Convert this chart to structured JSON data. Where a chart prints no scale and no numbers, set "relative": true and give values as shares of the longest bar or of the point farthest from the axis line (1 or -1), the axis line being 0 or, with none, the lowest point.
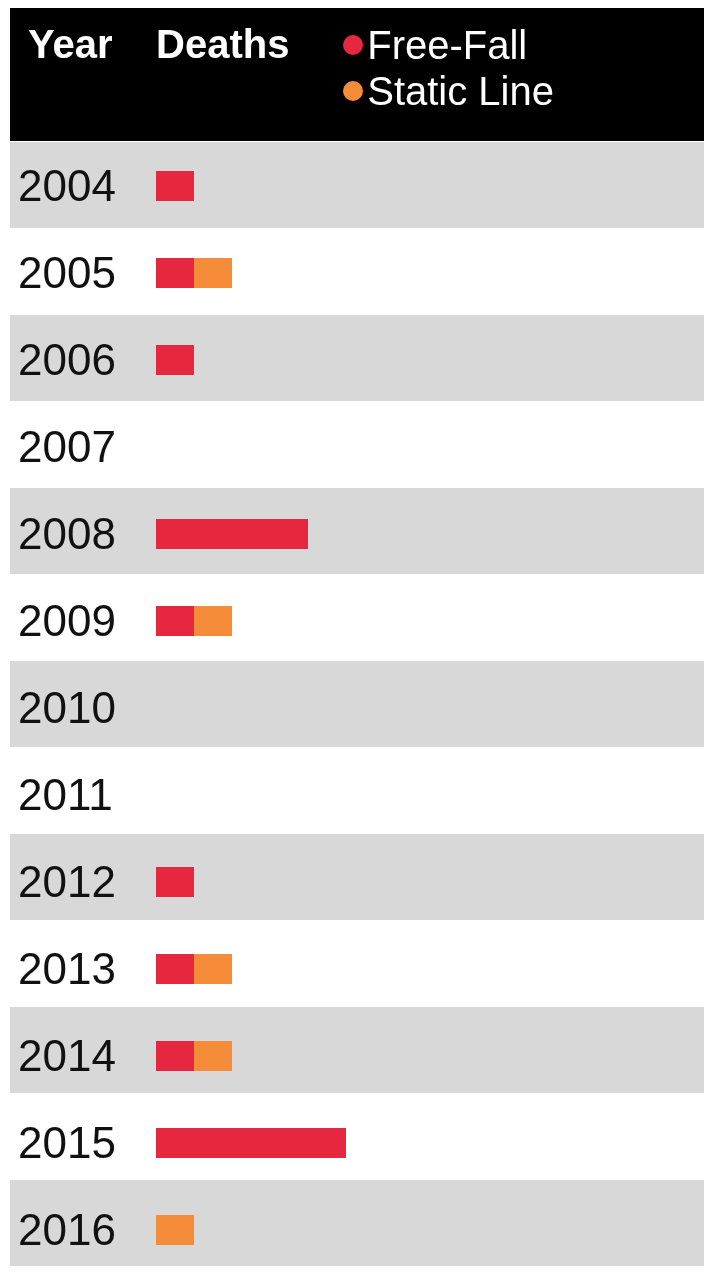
{
  "chart_data": {
    "type": "bar",
    "orientation": "horizontal",
    "stacked": true,
    "relative": true,
    "ylabel": "Year",
    "xlabel": "Deaths",
    "legend": "top right",
    "categories": [
      "2004",
      "2005",
      "2006",
      "2007",
      "2008",
      "2009",
      "2010",
      "2011",
      "2012",
      "2013",
      "2014",
      "2015",
      "2016"
    ],
    "series": [
      {
        "name": "Free-Fall",
        "color": "#e5283f",
        "values": [
          0.2,
          0.2,
          0.2,
          0,
          0.8,
          0.2,
          0,
          0,
          0.2,
          0.2,
          0.2,
          1,
          0
        ]
      },
      {
        "name": "Static Line",
        "color": "#f48c3a",
        "values": [
          0,
          0.2,
          0,
          0,
          0,
          0.2,
          0,
          0,
          0,
          0.2,
          0.2,
          0,
          0.2
        ]
      }
    ]
  }
}
